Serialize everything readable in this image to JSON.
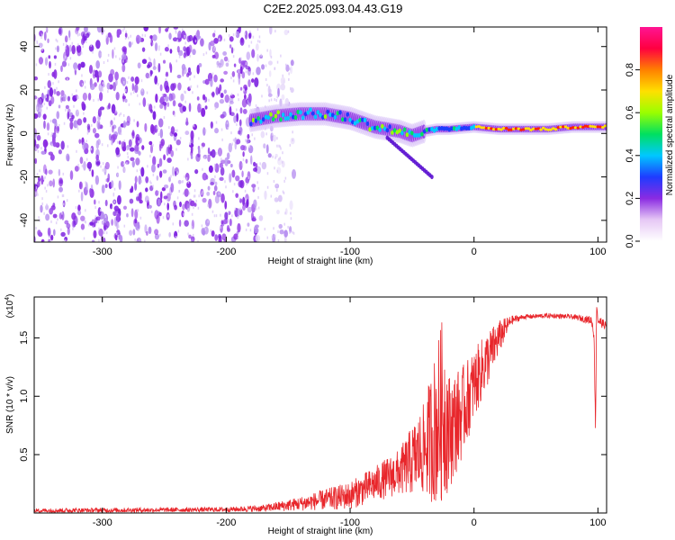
{
  "title": "C2E2.2025.093.04.43.G19",
  "chart_data": [
    {
      "type": "heatmap",
      "xlabel": "Height of straight line (km)",
      "ylabel": "Frequency (Hz)",
      "xlim": [
        -355,
        107
      ],
      "ylim": [
        -50,
        49
      ],
      "xticks": [
        -300,
        -200,
        -100,
        0,
        100
      ],
      "yticks": [
        -40,
        -20,
        0,
        20,
        40
      ],
      "colorbar": {
        "label": "Normalized spectral amplitude",
        "range": [
          0,
          1
        ],
        "ticks": [
          0.0,
          0.2,
          0.4,
          0.6,
          0.8
        ],
        "tick_labels": [
          "0.0",
          "0.2",
          "0.4",
          "0.6",
          "0.8"
        ],
        "colors": [
          "#ffffff",
          "#e6c8f5",
          "#8a2be2",
          "#1e3cff",
          "#00c8ff",
          "#00e060",
          "#9aff00",
          "#ffe000",
          "#ff8000",
          "#ff0040",
          "#ff1493"
        ]
      },
      "trace": {
        "x": [
          -180,
          -160,
          -140,
          -120,
          -110,
          -100,
          -80,
          -60,
          -50,
          -40,
          -30,
          -20,
          0,
          20,
          40,
          60,
          80,
          100,
          107
        ],
        "y": [
          6,
          8,
          9,
          9,
          8,
          7,
          3,
          1,
          -1,
          1,
          2,
          2,
          3,
          2,
          2,
          2,
          3,
          3,
          3
        ]
      },
      "noise_region": {
        "x_from": -355,
        "x_to": -145
      }
    },
    {
      "type": "line",
      "xlabel": "Height of straight line (km)",
      "ylabel": "SNR (10 * v/v)",
      "y_multiplier_label": "(x10",
      "y_multiplier_exp": "4",
      "xlim": [
        -355,
        107
      ],
      "ylim": [
        0,
        1.85
      ],
      "xticks": [
        -300,
        -200,
        -100,
        0,
        100
      ],
      "yticks": [
        0.5,
        1.0,
        1.5
      ],
      "ytick_labels": [
        "0.5",
        "1.0",
        "1.5"
      ],
      "line_color": "#e8262b",
      "envelope": {
        "x": [
          -355,
          -200,
          -170,
          -140,
          -100,
          -80,
          -60,
          -40,
          -30,
          -25,
          -20,
          -10,
          0,
          10,
          20,
          30,
          40,
          60,
          80,
          90,
          95,
          97,
          98,
          99,
          100,
          107
        ],
        "y": [
          0.02,
          0.03,
          0.04,
          0.08,
          0.15,
          0.25,
          0.35,
          0.55,
          0.75,
          0.9,
          0.7,
          0.85,
          1.1,
          1.3,
          1.5,
          1.65,
          1.68,
          1.69,
          1.68,
          1.66,
          1.65,
          1.5,
          0.7,
          1.8,
          1.65,
          1.6
        ],
        "amp": [
          0.02,
          0.02,
          0.03,
          0.06,
          0.12,
          0.15,
          0.2,
          0.4,
          0.7,
          0.8,
          0.5,
          0.4,
          0.3,
          0.25,
          0.15,
          0.04,
          0.02,
          0.02,
          0.02,
          0.03,
          0.04,
          0.05,
          0.05,
          0.05,
          0.05,
          0.03
        ]
      }
    }
  ]
}
